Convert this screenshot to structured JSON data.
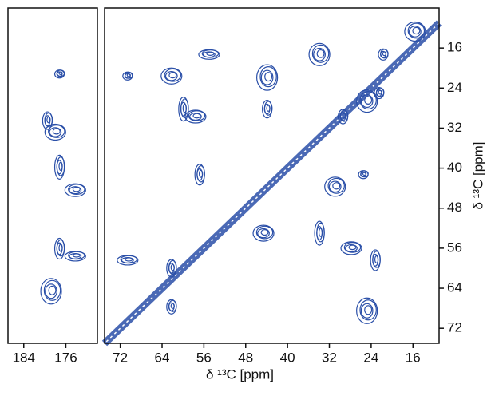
{
  "chart_data": [
    {
      "type": "contour",
      "color": "#2a4fa8",
      "xlim": [
        187,
        170
      ],
      "ylim": [
        75,
        8
      ],
      "xticks": [
        184,
        176
      ],
      "x": [
        177.2,
        178,
        177.2,
        174.2,
        177.2,
        174.2,
        179.5,
        178.8
      ],
      "y": [
        21.2,
        32.8,
        39.8,
        44.4,
        56.1,
        57.6,
        30.5,
        64.6
      ]
    },
    {
      "type": "contour",
      "color": "#2a4fa8",
      "diagonal": true,
      "xlim": [
        75,
        11
      ],
      "ylim": [
        75,
        8
      ],
      "xticks": [
        72,
        64,
        56,
        48,
        40,
        32,
        24,
        16
      ],
      "yticks": [
        16,
        24,
        32,
        40,
        48,
        56,
        64,
        72
      ],
      "xlabel": "δ ¹³C [ppm]",
      "ylabel": "δ ¹³C [ppm]",
      "x": [
        70.6,
        62.2,
        59.9,
        57.6,
        56.8,
        55,
        43.9,
        43.9,
        29.4,
        24.8,
        22.5,
        30.9,
        25.5,
        44.6,
        33.9,
        27.8,
        23.2,
        70.6,
        62.2,
        24.8,
        62.2,
        33.9,
        21.7,
        15.6
      ],
      "y": [
        21.6,
        21.6,
        28.2,
        29.7,
        41.3,
        17.3,
        28.2,
        21.9,
        29.7,
        26.6,
        25,
        43.7,
        41.3,
        53,
        53,
        56,
        58.4,
        58.4,
        60,
        68.5,
        67.7,
        17.3,
        17.3,
        12.7
      ]
    }
  ]
}
